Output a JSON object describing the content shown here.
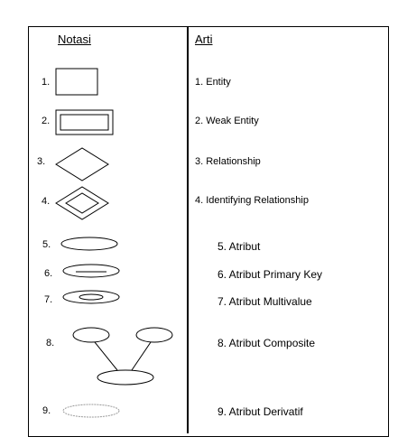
{
  "headers": {
    "notation": "Notasi",
    "meaning": "Arti"
  },
  "numbers": [
    "1.",
    "2.",
    "3.",
    "4.",
    "5.",
    "6.",
    "7.",
    "8.",
    "9."
  ],
  "meanings": [
    "1. Entity",
    "2. Weak Entity",
    "3. Relationship",
    "4. Identifying Relationship",
    "5. Atribut",
    "6. Atribut Primary Key",
    "7. Atribut Multivalue",
    "8. Atribut Composite",
    "9. Atribut Derivatif"
  ],
  "colors": {
    "line": "#000000",
    "derived_dashed": "#999999"
  }
}
